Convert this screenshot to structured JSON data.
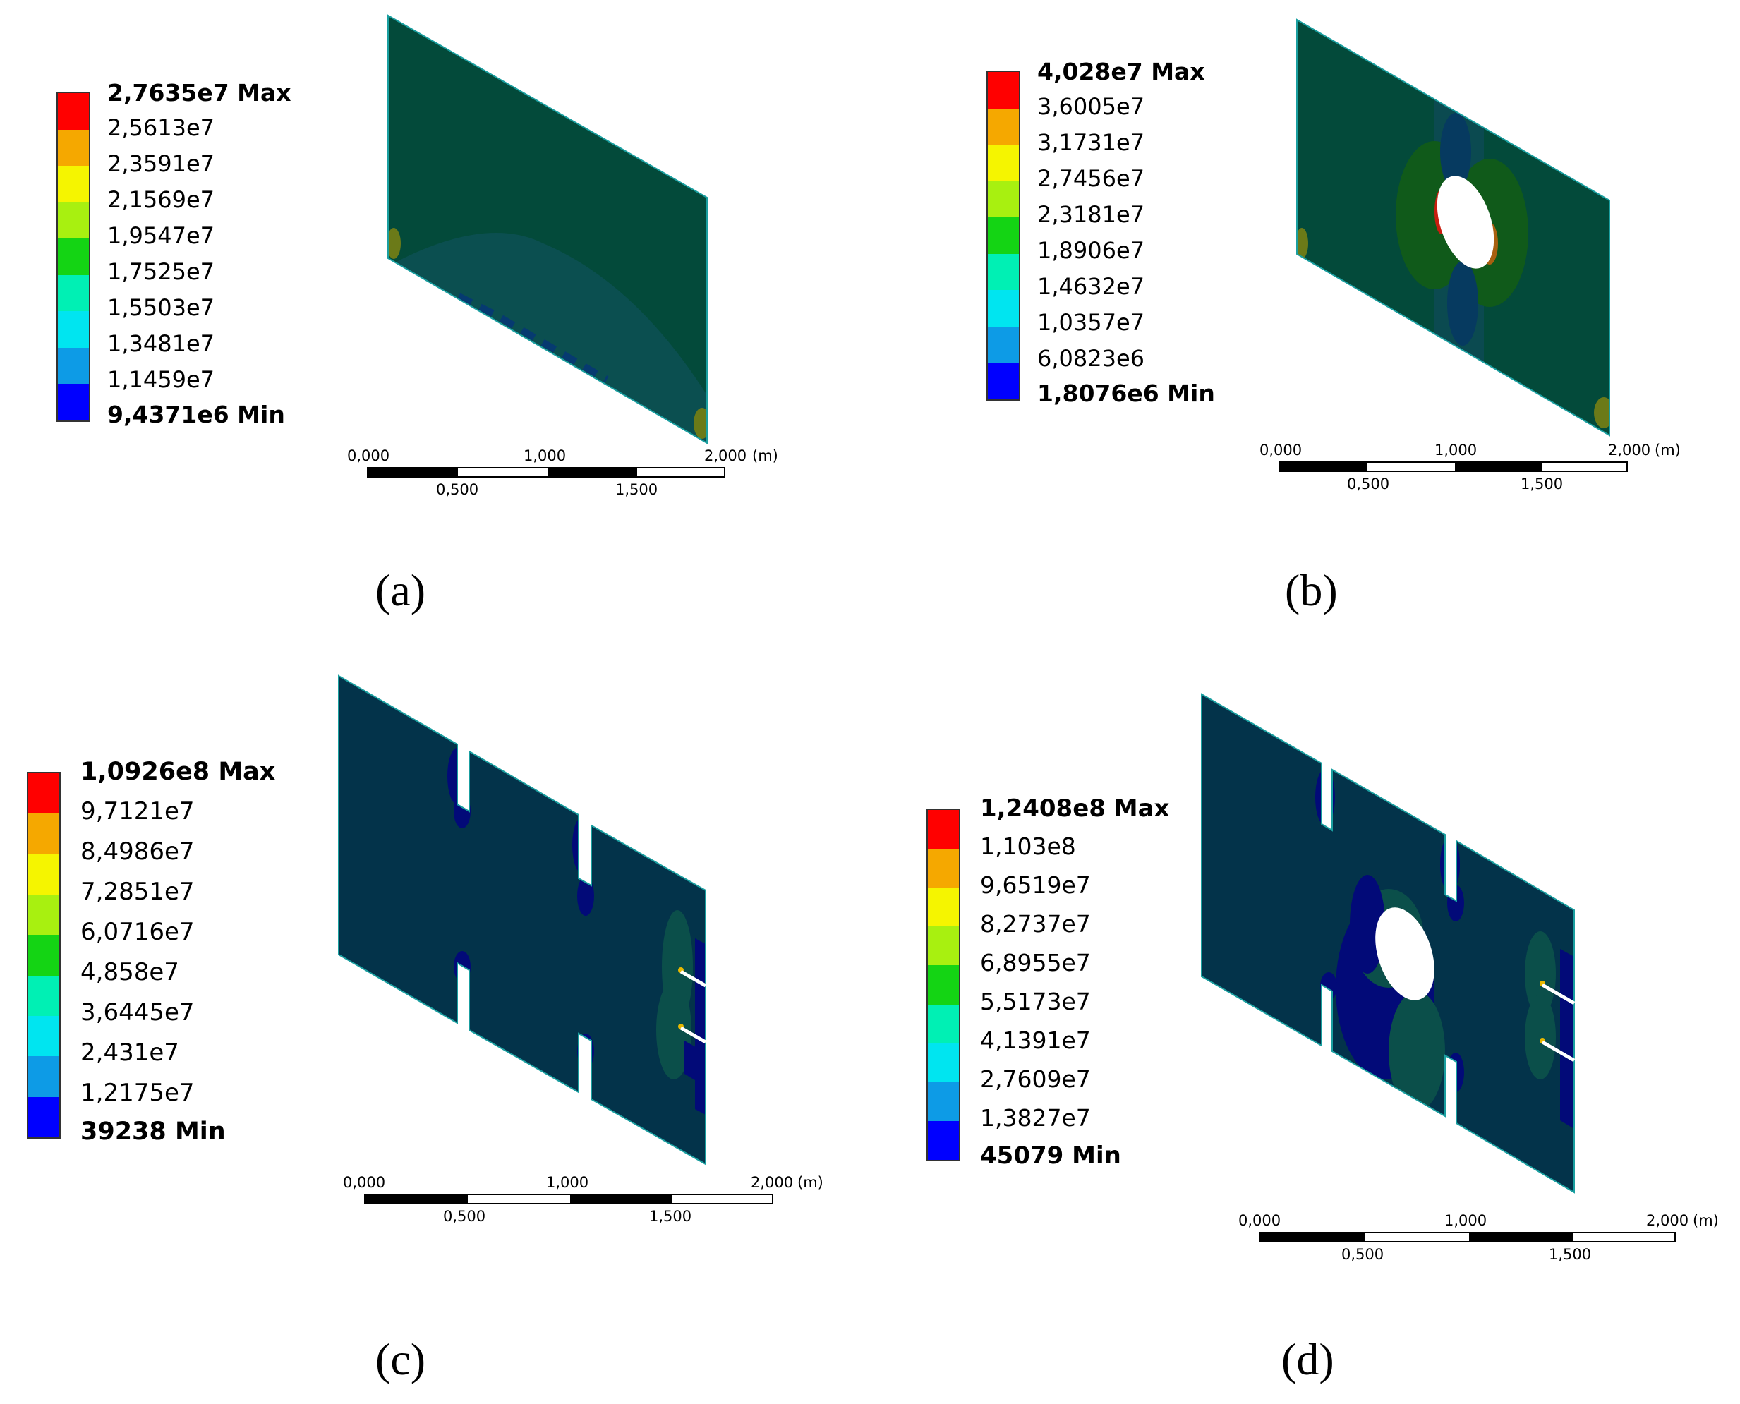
{
  "colormap": [
    "#0000ff",
    "#0d9be6",
    "#00e5f0",
    "#00f0b4",
    "#14d414",
    "#a8f010",
    "#f5f500",
    "#f5a800",
    "#ff0000"
  ],
  "panels": [
    {
      "id": "a",
      "caption": "(a)",
      "legend": {
        "max_label": "2,7635e7 Max",
        "min_label": "9,4371e6 Min",
        "mid_labels": [
          "2,5613e7",
          "2,3591e7",
          "2,1569e7",
          "1,9547e7",
          "1,7525e7",
          "1,5503e7",
          "1,3481e7",
          "1,1459e7"
        ]
      },
      "scale": {
        "top_ticks": [
          "0,000",
          "1,000",
          "2,000"
        ],
        "unit": "(m)",
        "bottom_ticks": [
          "0,500",
          "1,500"
        ]
      }
    },
    {
      "id": "b",
      "caption": "(b)",
      "legend": {
        "max_label": "4,028e7 Max",
        "min_label": "1,8076e6 Min",
        "mid_labels": [
          "3,6005e7",
          "3,1731e7",
          "2,7456e7",
          "2,3181e7",
          "1,8906e7",
          "1,4632e7",
          "1,0357e7",
          "6,0823e6"
        ]
      },
      "scale": {
        "top_ticks": [
          "0,000",
          "1,000",
          "2,000"
        ],
        "unit": "(m)",
        "bottom_ticks": [
          "0,500",
          "1,500"
        ]
      }
    },
    {
      "id": "c",
      "caption": "(c)",
      "legend": {
        "max_label": "1,0926e8 Max",
        "min_label": "39238 Min",
        "mid_labels": [
          "9,7121e7",
          "8,4986e7",
          "7,2851e7",
          "6,0716e7",
          "4,858e7",
          "3,6445e7",
          "2,431e7",
          "1,2175e7"
        ]
      },
      "scale": {
        "top_ticks": [
          "0,000",
          "1,000",
          "2,000"
        ],
        "unit": "(m)",
        "bottom_ticks": [
          "0,500",
          "1,500"
        ]
      }
    },
    {
      "id": "d",
      "caption": "(d)",
      "legend": {
        "max_label": "1,2408e8 Max",
        "min_label": "45079 Min",
        "mid_labels": [
          "1,103e8",
          "9,6519e7",
          "8,2737e7",
          "6,8955e7",
          "5,5173e7",
          "4,1391e7",
          "2,7609e7",
          "1,3827e7"
        ]
      },
      "scale": {
        "top_ticks": [
          "0,000",
          "1,000",
          "2,000"
        ],
        "unit": "(m)",
        "bottom_ticks": [
          "0,500",
          "1,500"
        ]
      }
    }
  ]
}
